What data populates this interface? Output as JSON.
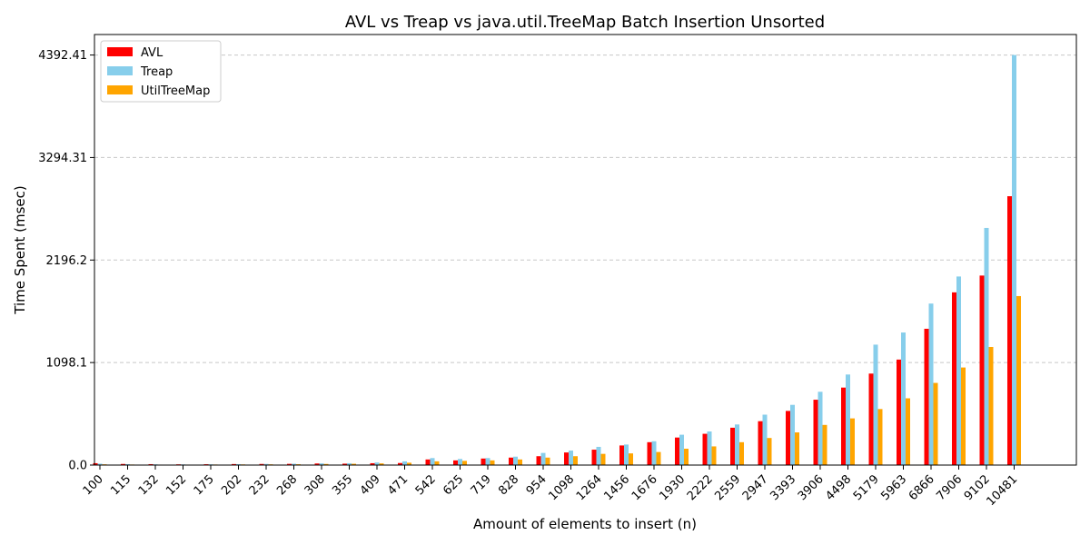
{
  "chart_data": {
    "type": "bar",
    "title": "AVL vs Treap vs java.util.TreeMap Batch Insertion Unsorted",
    "xlabel": "Amount of elements to insert (n)",
    "ylabel": "Time Spent (msec)",
    "categories": [
      "100",
      "115",
      "132",
      "152",
      "175",
      "202",
      "232",
      "268",
      "308",
      "355",
      "409",
      "471",
      "542",
      "625",
      "719",
      "828",
      "954",
      "1098",
      "1264",
      "1456",
      "1676",
      "1930",
      "2222",
      "2559",
      "2947",
      "3393",
      "3906",
      "4498",
      "5179",
      "5963",
      "6866",
      "7906",
      "9102",
      "10481"
    ],
    "yticks": [
      "0.0",
      "1098.1",
      "2196.2",
      "3294.31",
      "4392.41"
    ],
    "ylim": [
      0,
      4612
    ],
    "grid": "horizontal dashed",
    "legend_position": "top-left",
    "series": [
      {
        "name": "AVL",
        "color": "#ff0000",
        "values": [
          20,
          12,
          10,
          8,
          9,
          11,
          12,
          13,
          17,
          15,
          20,
          22,
          60,
          50,
          70,
          80,
          95,
          135,
          165,
          210,
          245,
          295,
          335,
          400,
          470,
          580,
          700,
          830,
          980,
          1130,
          1460,
          1850,
          2030,
          2880
        ]
      },
      {
        "name": "Treap",
        "color": "#87ceeb",
        "values": [
          15,
          10,
          8,
          7,
          8,
          10,
          12,
          14,
          18,
          20,
          28,
          40,
          75,
          65,
          75,
          90,
          130,
          155,
          195,
          220,
          255,
          325,
          360,
          435,
          540,
          645,
          785,
          970,
          1290,
          1420,
          1730,
          2020,
          2540,
          4392.41
        ]
      },
      {
        "name": "UtilTreeMap",
        "color": "#ffa500",
        "values": [
          8,
          6,
          5,
          5,
          6,
          7,
          8,
          9,
          12,
          14,
          18,
          25,
          40,
          45,
          50,
          60,
          80,
          95,
          120,
          125,
          140,
          175,
          200,
          245,
          290,
          350,
          430,
          500,
          600,
          715,
          880,
          1045,
          1265,
          1810
        ]
      }
    ]
  }
}
